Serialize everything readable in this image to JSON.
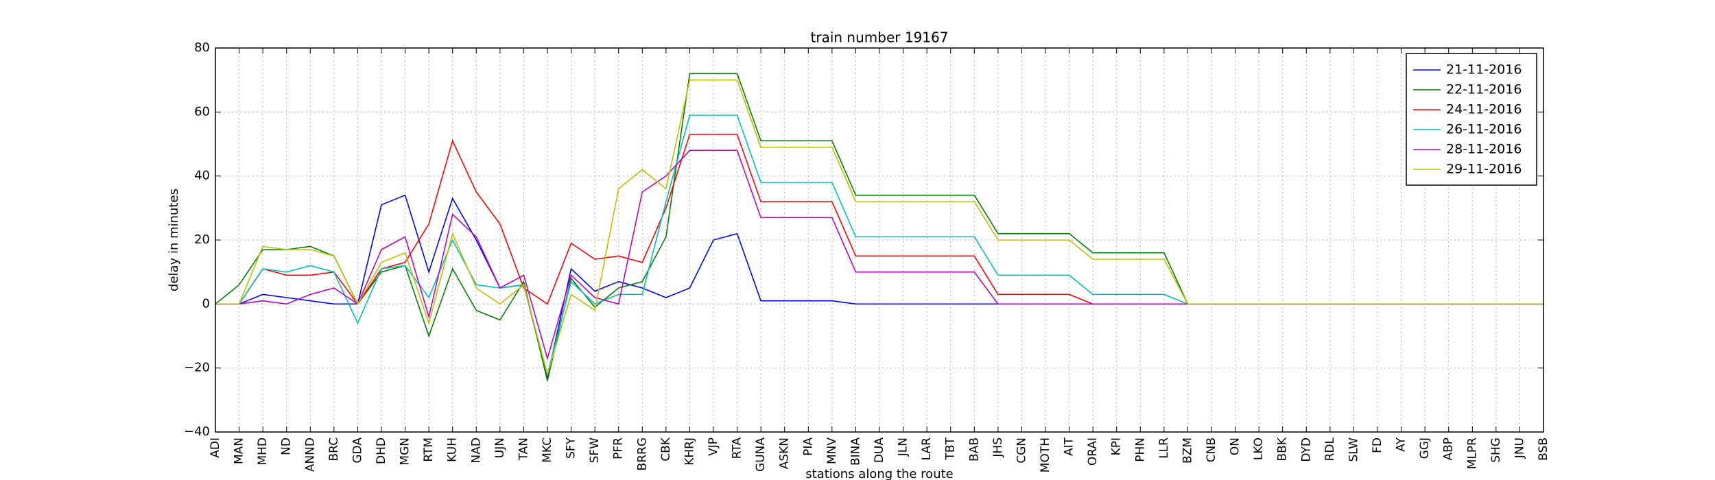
{
  "chart_data": {
    "type": "line",
    "title": "train number 19167",
    "xlabel": "stations along the route",
    "ylabel": "delay in minutes",
    "categories": [
      "ADI",
      "MAN",
      "MHD",
      "ND",
      "ANND",
      "BRC",
      "GDA",
      "DHD",
      "MGN",
      "RTM",
      "KUH",
      "NAD",
      "UJN",
      "TAN",
      "MKC",
      "SFY",
      "SFW",
      "PFR",
      "BRRG",
      "CBK",
      "KHRJ",
      "VJP",
      "RTA",
      "GUNA",
      "ASKN",
      "PIA",
      "MNV",
      "BINA",
      "DUA",
      "JLN",
      "LAR",
      "TBT",
      "BAB",
      "JHS",
      "CGN",
      "MOTH",
      "AIT",
      "ORAI",
      "KPI",
      "PHN",
      "LLR",
      "BZM",
      "CNB",
      "ON",
      "LKO",
      "BBK",
      "DYD",
      "RDL",
      "SLW",
      "FD",
      "AY",
      "GGJ",
      "ABP",
      "MLPR",
      "SHG",
      "JNU",
      "BSB"
    ],
    "series": [
      {
        "name": "21-11-2016",
        "color": "#0000ff",
        "values": [
          0,
          0,
          3,
          2,
          1,
          0,
          0,
          31,
          34,
          10,
          33,
          20,
          5,
          6,
          -23,
          11,
          4,
          7,
          5,
          2,
          5,
          20,
          22,
          1,
          1,
          1,
          1,
          0,
          0,
          0,
          0,
          0,
          0,
          0,
          0,
          0,
          0,
          0,
          0,
          0,
          0,
          0,
          0,
          0,
          0,
          0,
          0,
          0,
          0,
          0,
          0,
          0,
          0,
          0,
          0,
          0,
          0
        ]
      },
      {
        "name": "22-11-2016",
        "color": "#008000",
        "values": [
          0,
          6,
          17,
          17,
          18,
          15,
          0,
          10,
          12,
          -10,
          11,
          -2,
          -5,
          7,
          -24,
          8,
          -1,
          5,
          7,
          21,
          72,
          72,
          72,
          51,
          51,
          51,
          51,
          34,
          34,
          34,
          34,
          34,
          34,
          22,
          22,
          22,
          22,
          16,
          16,
          16,
          16,
          0,
          0,
          0,
          0,
          0,
          0,
          0,
          0,
          0,
          0,
          0,
          0,
          0,
          0,
          0,
          0
        ]
      },
      {
        "name": "24-11-2016",
        "color": "#ff0000",
        "values": [
          0,
          0,
          11,
          9,
          9,
          10,
          0,
          11,
          13,
          25,
          51,
          35,
          25,
          5,
          0,
          19,
          14,
          15,
          13,
          30,
          53,
          53,
          53,
          32,
          32,
          32,
          32,
          15,
          15,
          15,
          15,
          15,
          15,
          3,
          3,
          3,
          3,
          0,
          0,
          0,
          0,
          0,
          0,
          0,
          0,
          0,
          0,
          0,
          0,
          0,
          0,
          0,
          0,
          0,
          0,
          0,
          0
        ]
      },
      {
        "name": "26-11-2016",
        "color": "#00bfbf",
        "values": [
          0,
          0,
          11,
          10,
          12,
          10,
          -6,
          11,
          12,
          2,
          20,
          6,
          5,
          6,
          -22,
          7,
          0,
          3,
          3,
          32,
          59,
          59,
          59,
          38,
          38,
          38,
          38,
          21,
          21,
          21,
          21,
          21,
          21,
          9,
          9,
          9,
          9,
          3,
          3,
          3,
          3,
          0,
          0,
          0,
          0,
          0,
          0,
          0,
          0,
          0,
          0,
          0,
          0,
          0,
          0,
          0,
          0
        ]
      },
      {
        "name": "28-11-2016",
        "color": "#bf00bf",
        "values": [
          0,
          0,
          1,
          0,
          3,
          5,
          0,
          17,
          21,
          -4,
          28,
          21,
          5,
          9,
          -17,
          9,
          2,
          0,
          35,
          40,
          48,
          48,
          48,
          27,
          27,
          27,
          27,
          10,
          10,
          10,
          10,
          10,
          10,
          0,
          0,
          0,
          0,
          0,
          0,
          0,
          0,
          0,
          0,
          0,
          0,
          0,
          0,
          0,
          0,
          0,
          0,
          0,
          0,
          0,
          0,
          0,
          0
        ]
      },
      {
        "name": "29-11-2016",
        "color": "#bfbf00",
        "values": [
          0,
          0,
          18,
          17,
          17,
          15,
          0,
          13,
          16,
          -6,
          22,
          5,
          0,
          6,
          -22,
          3,
          -2,
          36,
          42,
          36,
          70,
          70,
          70,
          49,
          49,
          49,
          49,
          32,
          32,
          32,
          32,
          32,
          32,
          20,
          20,
          20,
          20,
          14,
          14,
          14,
          14,
          0,
          0,
          0,
          0,
          0,
          0,
          0,
          0,
          0,
          0,
          0,
          0,
          0,
          0,
          0,
          0
        ]
      }
    ],
    "ylim": [
      -40,
      80
    ],
    "yticks": [
      {
        "value": -40,
        "label": "−40"
      },
      {
        "value": -20,
        "label": "−20"
      },
      0,
      20,
      40,
      60,
      80
    ],
    "grid": true,
    "legend": "upper right"
  }
}
